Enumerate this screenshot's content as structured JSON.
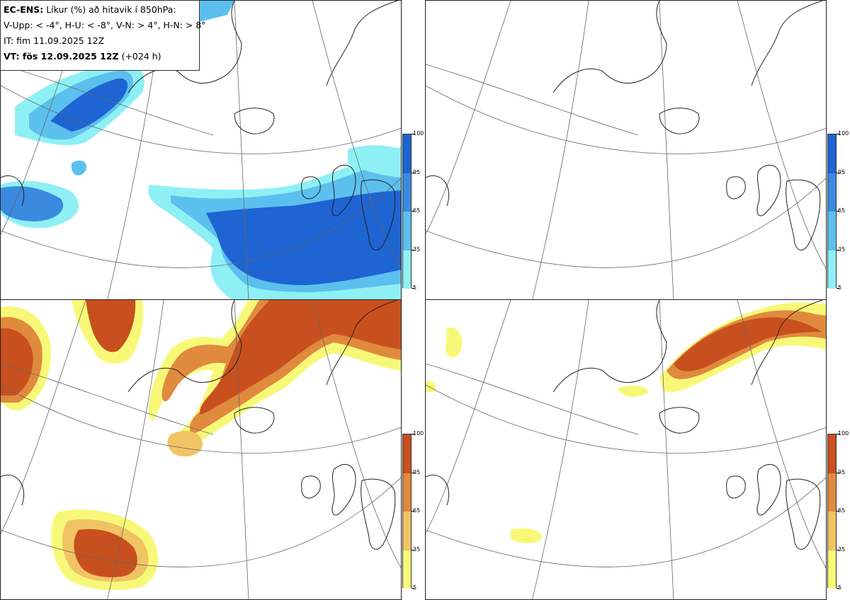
{
  "header": {
    "line1_bold": "EC-ENS:",
    "line1_rest": "Líkur (%) að hitavik í 850hPa:",
    "line2": "V-Upp: < -4°, H-U: < -8°, V-N: > 4°, H-N: > 8°",
    "line3": "IT: fim 11.09.2025 12Z",
    "line4_bold": "VT: fös 12.09.2025 12Z",
    "line4_rest": "(+024 h)"
  },
  "panels": [
    {
      "id": "v-upp",
      "scheme": "blue",
      "probability_note": "cold anomaly < -4°"
    },
    {
      "id": "h-u",
      "scheme": "blue",
      "probability_note": "cold anomaly < -8°"
    },
    {
      "id": "v-n",
      "scheme": "orange",
      "probability_note": "warm anomaly > 4°"
    },
    {
      "id": "h-n",
      "scheme": "orange",
      "probability_note": "warm anomaly > 8°"
    }
  ],
  "colorbar": {
    "ticks": [
      "100",
      "95",
      "65",
      "35",
      "5"
    ],
    "blue_colors": [
      "#1e64d2",
      "#3a8ae0",
      "#5cc0ee",
      "#8ef0f4"
    ],
    "orange_colors": [
      "#c8501e",
      "#e08a3e",
      "#f0c464",
      "#f8f878"
    ]
  }
}
